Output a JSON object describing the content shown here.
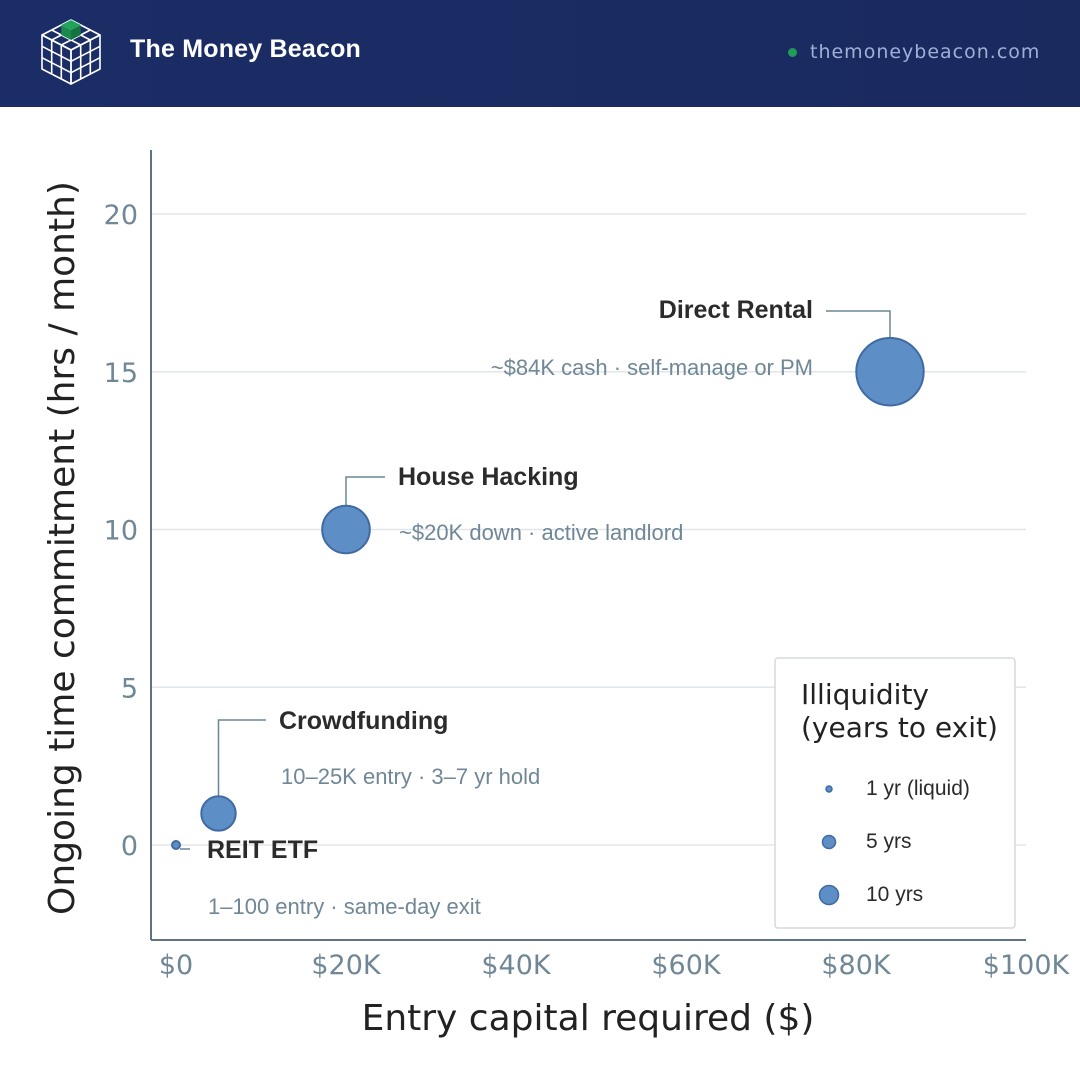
{
  "header": {
    "brand_name": "The Money Beacon",
    "url": "themoneybeacon.com",
    "logo_icon": "cube-logo-icon",
    "accent_color": "#1f9d57",
    "background_color": "#1b2d66"
  },
  "chart_data": {
    "type": "bubble",
    "xlabel": "Entry capital required ($)",
    "ylabel": "Ongoing time commitment (hrs / month)",
    "xlim": [
      -3000,
      100000
    ],
    "ylim": [
      -3,
      22
    ],
    "x_ticks": [
      0,
      20000,
      40000,
      60000,
      80000,
      100000
    ],
    "x_tick_labels": [
      "$0",
      "$20K",
      "$40K",
      "$60K",
      "$80K",
      "$100K"
    ],
    "y_ticks": [
      0,
      5,
      10,
      15,
      20
    ],
    "y_tick_labels": [
      "0",
      "5",
      "10",
      "15",
      "20"
    ],
    "grid": "horizontal",
    "bubble_color": "#5e8ec6",
    "bubble_edge_color": "#3f6aa3",
    "points": [
      {
        "name": "REIT ETF",
        "note": "1–100 entry · same-day exit",
        "x": 0,
        "y": 0,
        "illiquidity_years": 1
      },
      {
        "name": "Crowdfunding",
        "note": "10–25K entry · 3–7 yr hold",
        "x": 5000,
        "y": 1,
        "illiquidity_years": 5
      },
      {
        "name": "House Hacking",
        "note": "~$20K down · active landlord",
        "x": 20000,
        "y": 10,
        "illiquidity_years": 7
      },
      {
        "name": "Direct Rental",
        "note": "~$84K cash · self-manage or PM",
        "x": 84000,
        "y": 15,
        "illiquidity_years": 10
      }
    ],
    "legend": {
      "title_line1": "Illiquidity",
      "title_line2": "(years to exit)",
      "placement": "bottom-right",
      "entries": [
        {
          "label": "1 yr (liquid)",
          "years": 1
        },
        {
          "label": "5 yrs",
          "years": 5
        },
        {
          "label": "10 yrs",
          "years": 10
        }
      ]
    }
  }
}
